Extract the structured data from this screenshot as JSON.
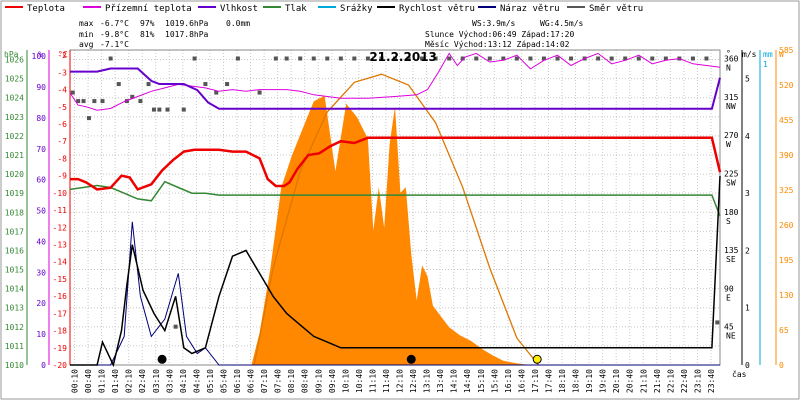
{
  "colors": {
    "temperature": "#ee0000",
    "apparent_temperature": "#dd00dd",
    "humidity": "#6600cc",
    "pressure": "#338833",
    "precipitation": "#00aadd",
    "wind_speed": "#000000",
    "wind_gust": "#000077",
    "wind_direction": "#555555",
    "solar_area": "#ff8800",
    "solar_curve": "#dd7700"
  },
  "legend": [
    {
      "label": "Teplota",
      "color": "#ee0000"
    },
    {
      "label": "Přízemní teplota",
      "color": "#dd00dd"
    },
    {
      "label": "Vlhkost",
      "color": "#6600cc"
    },
    {
      "label": "Tlak",
      "color": "#338833"
    },
    {
      "label": "Srážky",
      "color": "#00aadd"
    },
    {
      "label": "Rychlost větru",
      "color": "#000000"
    },
    {
      "label": "Náraz větru",
      "color": "#000077"
    },
    {
      "label": "Směr větru",
      "color": "#555555"
    }
  ],
  "stats": {
    "max": {
      "label": "max",
      "temp": "-6.7°C",
      "hum": "97%",
      "press": "1019.6hPa",
      "rain": "0.0mm"
    },
    "min": {
      "label": "min",
      "temp": "-9.8°C",
      "hum": "81%",
      "press": "1017.8hPa"
    },
    "avg": {
      "label": "avg",
      "temp": "-7.1°C"
    }
  },
  "info": {
    "ws": "WS:3.9m/s",
    "wg": "WG:4.5m/s",
    "sun": "Slunce Východ:06:49  Západ:17:20",
    "moon": "Měsíc  Východ:13:12  Západ:14:02"
  },
  "chart_data": {
    "type": "line",
    "title": "21.2.2013",
    "xlabel": "čas",
    "x_ticks": [
      "00:10",
      "00:40",
      "01:10",
      "01:40",
      "02:10",
      "02:40",
      "03:10",
      "03:40",
      "04:10",
      "04:40",
      "05:10",
      "05:40",
      "06:10",
      "06:40",
      "07:10",
      "07:40",
      "08:10",
      "08:40",
      "09:10",
      "09:40",
      "10:10",
      "10:40",
      "11:10",
      "11:40",
      "12:10",
      "12:40",
      "13:10",
      "13:40",
      "14:10",
      "14:40",
      "15:10",
      "15:40",
      "16:10",
      "16:40",
      "17:10",
      "17:40",
      "18:10",
      "18:40",
      "19:10",
      "19:40",
      "20:10",
      "20:40",
      "21:10",
      "21:40",
      "22:10",
      "22:40",
      "23:10",
      "23:40"
    ],
    "axes": {
      "hpa": {
        "label": "hPa",
        "ticks": [
          "1026",
          "1025",
          "1024",
          "1023",
          "1022",
          "1021",
          "1020",
          "1019",
          "1018",
          "1017",
          "1016",
          "1015",
          "1014",
          "1013",
          "1012",
          "1011",
          "1010"
        ],
        "range": [
          1010,
          1026.5
        ]
      },
      "percent": {
        "label": "%",
        "ticks": [
          "100",
          "90",
          "80",
          "70",
          "60",
          "50",
          "40",
          "30",
          "20",
          "10",
          "0"
        ],
        "range": [
          0,
          102
        ]
      },
      "celsius": {
        "label": "°C",
        "ticks": [
          "-2",
          "-3",
          "-4",
          "-5",
          "-6",
          "-7",
          "-8",
          "-9",
          "-10",
          "-11",
          "-12",
          "-13",
          "-14",
          "-15",
          "-16",
          "-17",
          "-18",
          "-19",
          "-20"
        ],
        "range": [
          -20,
          -1.7
        ]
      },
      "direction": {
        "label": "°",
        "ticks": [
          {
            "deg": "360",
            "card": "N"
          },
          {
            "deg": "315",
            "card": "NW"
          },
          {
            "deg": "270",
            "card": "W"
          },
          {
            "deg": "225",
            "card": "SW"
          },
          {
            "deg": "180",
            "card": "S"
          },
          {
            "deg": "135",
            "card": "SE"
          },
          {
            "deg": "90",
            "card": "E"
          },
          {
            "deg": "45",
            "card": "NE"
          }
        ],
        "range": [
          0,
          370
        ]
      },
      "wind": {
        "label": "m/s",
        "ticks": [
          "5",
          "4",
          "3",
          "2",
          "1",
          "0"
        ],
        "range": [
          0,
          5.5
        ]
      },
      "rain": {
        "label": "mm",
        "ticks": [
          "1",
          "0"
        ]
      },
      "solar": {
        "label": "W",
        "ticks": [
          "585",
          "520",
          "455",
          "390",
          "325",
          "260",
          "195",
          "130",
          "65",
          "0"
        ],
        "range": [
          0,
          585
        ]
      }
    },
    "series": [
      {
        "name": "Teplota",
        "axis": "celsius",
        "x": [
          0,
          0.3,
          0.6,
          1.0,
          1.5,
          1.9,
          2.2,
          2.5,
          3.0,
          3.4,
          3.8,
          4.2,
          4.6,
          5.0,
          5.5,
          6.0,
          6.5,
          7.0,
          7.3,
          7.6,
          7.9,
          8.1,
          8.4,
          8.8,
          9.2,
          9.6,
          10.0,
          10.5,
          11,
          12,
          13,
          14,
          15,
          16,
          17,
          18,
          19,
          20,
          21,
          22,
          23,
          23.7,
          24
        ],
        "y": [
          -9.2,
          -9.2,
          -9.4,
          -9.8,
          -9.7,
          -9.0,
          -9.1,
          -9.8,
          -9.5,
          -8.7,
          -8.1,
          -7.6,
          -7.5,
          -7.5,
          -7.5,
          -7.6,
          -7.6,
          -8.0,
          -9.2,
          -9.6,
          -9.6,
          -9.4,
          -8.6,
          -7.8,
          -7.7,
          -7.3,
          -7.0,
          -7.1,
          -6.8,
          -6.8,
          -6.8,
          -6.8,
          -6.8,
          -6.8,
          -6.8,
          -6.8,
          -6.8,
          -6.8,
          -6.8,
          -6.8,
          -6.8,
          -6.8,
          -8.8
        ]
      },
      {
        "name": "Přízemní teplota",
        "axis": "celsius",
        "x": [
          0,
          0.3,
          0.6,
          1.0,
          1.5,
          2.0,
          2.5,
          3.0,
          3.5,
          4.0,
          4.5,
          5.0,
          5.5,
          6.0,
          6.5,
          7.0,
          8.0,
          8.5,
          9.0,
          10.0,
          11.0,
          12.0,
          12.8,
          13.2,
          13.6,
          14.0,
          14.3,
          14.6,
          15.0,
          15.5,
          16.0,
          16.5,
          17.0,
          17.5,
          18.0,
          18.5,
          19.0,
          19.5,
          20.0,
          20.5,
          21.0,
          21.5,
          22.0,
          22.5,
          23.0,
          23.5,
          24
        ],
        "y": [
          -4.2,
          -4.9,
          -5.0,
          -5.2,
          -5.1,
          -4.7,
          -4.4,
          -4.1,
          -3.9,
          -3.7,
          -3.8,
          -3.9,
          -4.1,
          -4.0,
          -4.1,
          -4.0,
          -4.0,
          -4.1,
          -4.3,
          -4.5,
          -4.5,
          -4.4,
          -4.3,
          -4.0,
          -3.0,
          -1.9,
          -2.6,
          -2.1,
          -1.9,
          -2.4,
          -2.3,
          -2.0,
          -2.8,
          -2.3,
          -2.0,
          -2.6,
          -2.2,
          -1.9,
          -2.5,
          -2.3,
          -2.0,
          -2.5,
          -2.3,
          -2.2,
          -2.5,
          -2.6,
          -2.7
        ]
      },
      {
        "name": "Vlhkost",
        "axis": "percent",
        "x": [
          0,
          1.0,
          1.5,
          2.0,
          2.5,
          3.0,
          3.3,
          3.6,
          4.2,
          4.7,
          5.1,
          5.5,
          6.0,
          7,
          8,
          9,
          10,
          11,
          12,
          13,
          14,
          15,
          16,
          17,
          18,
          19,
          20,
          21,
          22,
          23,
          23.7,
          24
        ],
        "y": [
          95,
          95,
          96,
          96,
          96,
          92,
          91,
          91,
          91,
          89,
          85,
          83,
          83,
          83,
          83,
          83,
          83,
          83,
          83,
          83,
          83,
          83,
          83,
          83,
          83,
          83,
          83,
          83,
          83,
          83,
          83,
          93
        ]
      },
      {
        "name": "Tlak",
        "axis": "hpa",
        "x": [
          0,
          1.0,
          1.5,
          2.0,
          2.5,
          3.0,
          3.5,
          4.0,
          4.5,
          5.0,
          5.5,
          6.0,
          7,
          8,
          9,
          10,
          11,
          12,
          13,
          14,
          15,
          16,
          17,
          18,
          19,
          20,
          21,
          22,
          23,
          23.7,
          24
        ],
        "y": [
          1019.2,
          1019.4,
          1019.3,
          1019.0,
          1018.7,
          1018.6,
          1019.6,
          1019.3,
          1019.0,
          1019.0,
          1018.9,
          1018.9,
          1018.9,
          1018.9,
          1018.9,
          1018.9,
          1018.9,
          1018.9,
          1018.9,
          1018.9,
          1018.9,
          1018.9,
          1018.9,
          1018.9,
          1018.9,
          1018.9,
          1018.9,
          1018.9,
          1018.9,
          1018.9,
          1017.8
        ]
      },
      {
        "name": "Srážky",
        "axis": "rain",
        "x": [
          0,
          24
        ],
        "y": [
          0,
          0
        ]
      },
      {
        "name": "Rychlost větru",
        "axis": "wind",
        "x": [
          0,
          0.3,
          0.6,
          1.0,
          1.2,
          1.6,
          1.9,
          2.1,
          2.3,
          2.7,
          3.1,
          3.5,
          3.9,
          4.2,
          4.5,
          5.0,
          5.5,
          6.0,
          6.5,
          7.0,
          7.5,
          8.0,
          8.5,
          9.0,
          9.5,
          10,
          11,
          12,
          13,
          14,
          15,
          16,
          17,
          18,
          19,
          20,
          21,
          22,
          23,
          23.7,
          24
        ],
        "y": [
          0,
          0,
          0,
          0,
          0.4,
          0,
          0.6,
          1.4,
          2.1,
          1.3,
          0.9,
          0.6,
          1.2,
          0.3,
          0.2,
          0.3,
          1.2,
          1.9,
          2.0,
          1.6,
          1.2,
          0.9,
          0.7,
          0.5,
          0.4,
          0.3,
          0.3,
          0.3,
          0.3,
          0.3,
          0.3,
          0.3,
          0.3,
          0.3,
          0.3,
          0.3,
          0.3,
          0.3,
          0.3,
          0.3,
          3.3
        ]
      },
      {
        "name": "Náraz větru",
        "axis": "wind",
        "x": [
          0,
          1.0,
          1.5,
          2.0,
          2.3,
          2.6,
          3.0,
          3.5,
          4.0,
          4.3,
          4.7,
          5.0,
          5.5,
          24
        ],
        "y": [
          0,
          0,
          0,
          0.5,
          2.5,
          1.2,
          0.5,
          0.8,
          1.6,
          0.5,
          0.2,
          0.3,
          0.0,
          0.0
        ]
      },
      {
        "name": "Směr větru",
        "axis": "direction",
        "x": [
          0.1,
          0.3,
          0.5,
          0.7,
          0.9,
          1.2,
          1.5,
          1.8,
          2.1,
          2.3,
          2.6,
          2.9,
          3.1,
          3.3,
          3.6,
          3.9,
          4.2,
          4.6,
          5.0,
          5.4,
          5.8,
          6.2,
          7.0,
          7.6,
          8.0,
          8.5,
          9.0,
          9.5,
          10,
          10.5,
          11,
          11.5,
          12,
          12.5,
          13,
          13.5,
          14,
          14.5,
          15,
          15.5,
          16,
          16.5,
          17,
          17.5,
          18,
          18.5,
          19,
          19.5,
          20,
          20.5,
          21,
          21.5,
          22,
          22.5,
          23,
          23.5,
          23.9
        ],
        "y": [
          320,
          310,
          310,
          290,
          310,
          310,
          360,
          330,
          310,
          315,
          310,
          330,
          300,
          300,
          300,
          45,
          300,
          360,
          330,
          320,
          330,
          360,
          320,
          360,
          360,
          360,
          360,
          360,
          360,
          360,
          360,
          360,
          360,
          360,
          360,
          360,
          360,
          360,
          360,
          360,
          360,
          360,
          360,
          360,
          360,
          360,
          360,
          360,
          360,
          360,
          360,
          360,
          360,
          360,
          360,
          360,
          50
        ]
      },
      {
        "name": "solar",
        "axis": "solar",
        "x": [
          0,
          6.7,
          7.0,
          7.4,
          7.8,
          8.2,
          8.6,
          9.0,
          9.4,
          9.8,
          10.2,
          10.6,
          11.0,
          11.2,
          11.4,
          11.6,
          11.8,
          12.0,
          12.2,
          12.4,
          12.6,
          12.8,
          13.0,
          13.2,
          13.4,
          13.7,
          14.0,
          14.4,
          14.8,
          15.2,
          15.6,
          16.0,
          16.5,
          17.0,
          17.3,
          24
        ],
        "y": [
          0,
          0,
          60,
          180,
          330,
          390,
          440,
          490,
          500,
          360,
          485,
          460,
          420,
          250,
          330,
          255,
          410,
          480,
          320,
          330,
          205,
          120,
          185,
          165,
          110,
          90,
          70,
          55,
          45,
          30,
          18,
          8,
          3,
          0,
          0,
          0
        ]
      },
      {
        "name": "solar_clear",
        "axis": "solar",
        "x": [
          6.8,
          7.5,
          8.5,
          9.5,
          10.5,
          11.5,
          12.5,
          13.5,
          14.5,
          15.5,
          16.5,
          17.3
        ],
        "y": [
          0,
          180,
          360,
          470,
          525,
          540,
          520,
          450,
          330,
          180,
          50,
          0
        ]
      }
    ],
    "markers": [
      {
        "x": 3.4,
        "y": 0.1,
        "axis": "wind",
        "fill": "#000"
      },
      {
        "x": 12.6,
        "y": 0.1,
        "axis": "wind",
        "fill": "#000"
      },
      {
        "x": 17.25,
        "y": 0.1,
        "axis": "wind",
        "fill": "#ffee00"
      }
    ]
  }
}
